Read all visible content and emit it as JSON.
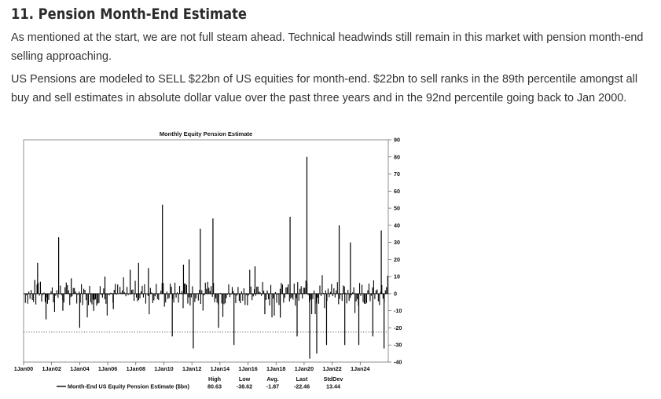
{
  "heading": "11. Pension Month-End Estimate",
  "paragraphs": [
    "As mentioned at the start, we are not full steam ahead. Technical headwinds still remain in this market with pension month-end selling approaching.",
    "US Pensions are modeled to SELL $22bn of US equities for month-end. $22bn to sell ranks in the 89th percentile amongst all buy and sell estimates in absolute dollar value over the past three years and in the 92nd percentile going back to Jan 2000."
  ],
  "chart_data": {
    "type": "bar",
    "title": "Monthly Equity Pension Estimate",
    "ylim": [
      -40,
      90
    ],
    "y_ticks": [
      90,
      80,
      70,
      60,
      50,
      40,
      30,
      20,
      10,
      0,
      -10,
      -20,
      -30,
      -40
    ],
    "x_range": [
      2000,
      2026
    ],
    "x_tick_labels": [
      "1Jan00",
      "1Jan02",
      "1Jan04",
      "1Jan06",
      "1Jan08",
      "1Jan10",
      "1Jan12",
      "1Jan14",
      "1Jan16",
      "1Jan18",
      "1Jan20",
      "1Jan22",
      "1Jan24"
    ],
    "reference_line": {
      "value": -22.46,
      "style": "dotted"
    },
    "series": [
      {
        "name": "Month-End US Equity Pension Estimate ($bn)",
        "color": "#000000",
        "spikes": [
          {
            "t": 2000.8,
            "v": 8
          },
          {
            "t": 2001.0,
            "v": 18
          },
          {
            "t": 2001.2,
            "v": 7
          },
          {
            "t": 2001.6,
            "v": -15
          },
          {
            "t": 2002.5,
            "v": 33
          },
          {
            "t": 2002.8,
            "v": -10
          },
          {
            "t": 2003.4,
            "v": 9
          },
          {
            "t": 2004.0,
            "v": -20
          },
          {
            "t": 2005.0,
            "v": -10
          },
          {
            "t": 2005.8,
            "v": 10
          },
          {
            "t": 2006.4,
            "v": -9
          },
          {
            "t": 2007.6,
            "v": 14
          },
          {
            "t": 2008.2,
            "v": 18
          },
          {
            "t": 2008.9,
            "v": 15
          },
          {
            "t": 2009.9,
            "v": 52
          },
          {
            "t": 2010.6,
            "v": -25
          },
          {
            "t": 2011.4,
            "v": 17
          },
          {
            "t": 2011.8,
            "v": 20
          },
          {
            "t": 2012.1,
            "v": -32
          },
          {
            "t": 2012.6,
            "v": 38
          },
          {
            "t": 2013.5,
            "v": 44
          },
          {
            "t": 2013.9,
            "v": -20
          },
          {
            "t": 2015.0,
            "v": -30
          },
          {
            "t": 2016.5,
            "v": 16
          },
          {
            "t": 2017.2,
            "v": -12
          },
          {
            "t": 2018.3,
            "v": -14
          },
          {
            "t": 2019.0,
            "v": 45
          },
          {
            "t": 2019.5,
            "v": -25
          },
          {
            "t": 2020.2,
            "v": 80
          },
          {
            "t": 2020.4,
            "v": -38
          },
          {
            "t": 2020.9,
            "v": -35
          },
          {
            "t": 2021.6,
            "v": -30
          },
          {
            "t": 2022.5,
            "v": 40
          },
          {
            "t": 2022.9,
            "v": -30
          },
          {
            "t": 2023.3,
            "v": 30
          },
          {
            "t": 2023.9,
            "v": -30
          },
          {
            "t": 2024.9,
            "v": -25
          },
          {
            "t": 2025.5,
            "v": 37
          },
          {
            "t": 2025.7,
            "v": -32
          }
        ]
      }
    ],
    "stats": {
      "headers": [
        "High",
        "Low",
        "Avg.",
        "Last",
        "StdDev"
      ],
      "values": [
        "80.63",
        "-38.62",
        "-1.87",
        "-22.46",
        "13.44"
      ]
    }
  }
}
